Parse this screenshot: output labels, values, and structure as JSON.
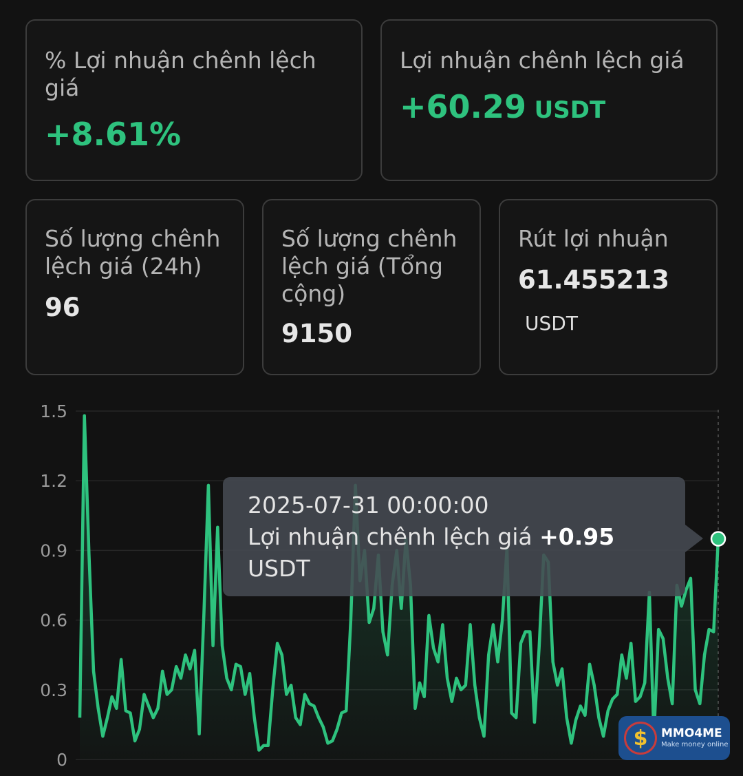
{
  "stats": {
    "profit_pct": {
      "label": "% Lợi nhuận chênh lệch giá",
      "value": "+8.61%"
    },
    "profit": {
      "label": "Lợi nhuận chênh lệch giá",
      "value": "+60.29",
      "unit": "USDT"
    },
    "count_24h": {
      "label": "Số lượng chênh lệch giá (24h)",
      "value": "96"
    },
    "count_total": {
      "label": "Số lượng chênh lệch giá (Tổng cộng)",
      "value": "9150"
    },
    "withdraw": {
      "label": "Rút lợi nhuận",
      "value": "61.455213",
      "unit": "USDT"
    }
  },
  "tooltip": {
    "date": "2025-07-31 00:00:00",
    "label": "Lợi nhuận chênh lệch giá",
    "value": "+0.95",
    "unit": "USDT"
  },
  "watermark": {
    "name": "MMO4ME",
    "tagline": "Make money online"
  },
  "colors": {
    "accent_green": "#2ec27e",
    "background": "#121212",
    "card_border": "#3c3c3c"
  },
  "chart_data": {
    "type": "area",
    "ylim": [
      0,
      1.5
    ],
    "yticks": [
      "0",
      "0.3",
      "0.6",
      "0.9",
      "1.2",
      "1.5"
    ],
    "grid": true,
    "series": [
      {
        "values": [
          0.18,
          1.48,
          0.88,
          0.38,
          0.22,
          0.1,
          0.18,
          0.27,
          0.22,
          0.43,
          0.21,
          0.2,
          0.08,
          0.13,
          0.28,
          0.23,
          0.18,
          0.22,
          0.38,
          0.28,
          0.3,
          0.4,
          0.35,
          0.45,
          0.39,
          0.47,
          0.11,
          0.62,
          1.18,
          0.49,
          1.0,
          0.49,
          0.35,
          0.3,
          0.41,
          0.4,
          0.28,
          0.37,
          0.18,
          0.04,
          0.06,
          0.06,
          0.3,
          0.5,
          0.45,
          0.28,
          0.32,
          0.18,
          0.15,
          0.28,
          0.24,
          0.23,
          0.18,
          0.14,
          0.07,
          0.08,
          0.13,
          0.2,
          0.21,
          0.6,
          1.18,
          0.77,
          0.9,
          0.59,
          0.65,
          0.88,
          0.55,
          0.45,
          0.75,
          0.9,
          0.65,
          0.95,
          0.75,
          0.22,
          0.33,
          0.27,
          0.62,
          0.48,
          0.42,
          0.58,
          0.35,
          0.25,
          0.35,
          0.3,
          0.32,
          0.58,
          0.32,
          0.18,
          0.1,
          0.45,
          0.58,
          0.42,
          0.6,
          0.91,
          0.2,
          0.18,
          0.5,
          0.55,
          0.55,
          0.16,
          0.48,
          0.88,
          0.85,
          0.42,
          0.32,
          0.39,
          0.18,
          0.07,
          0.17,
          0.23,
          0.19,
          0.41,
          0.32,
          0.18,
          0.1,
          0.21,
          0.26,
          0.28,
          0.45,
          0.35,
          0.5,
          0.25,
          0.27,
          0.33,
          0.72,
          0.1,
          0.56,
          0.52,
          0.35,
          0.24,
          0.75,
          0.66,
          0.73,
          0.78,
          0.3,
          0.24,
          0.45,
          0.56,
          0.55,
          0.95
        ]
      }
    ],
    "highlight": {
      "x": "2025-07-31 00:00:00",
      "y": 0.95
    }
  }
}
